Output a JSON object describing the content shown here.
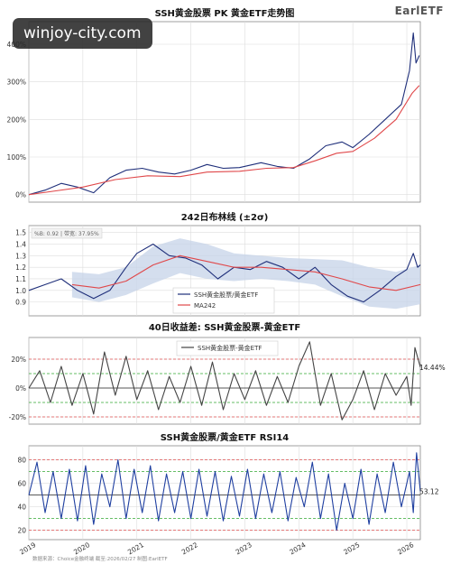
{
  "watermark": "winjoy-city.com",
  "logo": "EarlETF",
  "source": "数据来源：Choice金融终端 截至:2026/02/27 制图:EarlETF",
  "x_axis": {
    "years": [
      "2019",
      "2020",
      "2021",
      "2022",
      "2023",
      "2024",
      "2025",
      "2026"
    ],
    "start": 2019.0,
    "end": 2026.25
  },
  "colors": {
    "navy": "#1f2f7a",
    "red": "#e0484a",
    "band": "#c5d3e8",
    "gray": "#444444",
    "grid": "#dddddd",
    "green": "#33a833",
    "reddash": "#e05050",
    "black": "#222222"
  },
  "chart_data": [
    {
      "type": "line",
      "title": "SSH黄金股票 PK 黄金ETF走势图",
      "ylabel": "",
      "ylim": [
        -20,
        460
      ],
      "yticks": [
        "0%",
        "100%",
        "200%",
        "300%",
        "400%"
      ],
      "ytick_values": [
        0,
        100,
        200,
        300,
        400
      ],
      "series": [
        {
          "name": "",
          "color": "#1f2f7a",
          "points": [
            [
              2019.0,
              0
            ],
            [
              2019.3,
              12
            ],
            [
              2019.6,
              30
            ],
            [
              2019.9,
              20
            ],
            [
              2020.2,
              5
            ],
            [
              2020.5,
              45
            ],
            [
              2020.8,
              65
            ],
            [
              2021.1,
              70
            ],
            [
              2021.4,
              60
            ],
            [
              2021.7,
              55
            ],
            [
              2022.0,
              65
            ],
            [
              2022.3,
              80
            ],
            [
              2022.6,
              70
            ],
            [
              2022.9,
              72
            ],
            [
              2023.3,
              85
            ],
            [
              2023.6,
              75
            ],
            [
              2023.9,
              70
            ],
            [
              2024.2,
              95
            ],
            [
              2024.5,
              130
            ],
            [
              2024.8,
              140
            ],
            [
              2025.0,
              125
            ],
            [
              2025.3,
              160
            ],
            [
              2025.6,
              200
            ],
            [
              2025.9,
              240
            ],
            [
              2026.05,
              330
            ],
            [
              2026.12,
              430
            ],
            [
              2026.17,
              350
            ],
            [
              2026.23,
              370
            ]
          ]
        },
        {
          "name": "",
          "color": "#e0484a",
          "points": [
            [
              2019.0,
              0
            ],
            [
              2019.5,
              10
            ],
            [
              2020.0,
              20
            ],
            [
              2020.6,
              40
            ],
            [
              2021.2,
              50
            ],
            [
              2021.8,
              48
            ],
            [
              2022.3,
              60
            ],
            [
              2022.9,
              62
            ],
            [
              2023.4,
              70
            ],
            [
              2023.9,
              72
            ],
            [
              2024.3,
              90
            ],
            [
              2024.7,
              110
            ],
            [
              2025.0,
              115
            ],
            [
              2025.4,
              150
            ],
            [
              2025.8,
              200
            ],
            [
              2026.1,
              270
            ],
            [
              2026.23,
              290
            ]
          ]
        }
      ]
    },
    {
      "type": "line",
      "title": "242日布林线 (±2σ)",
      "annotation": "%B: 0.92 | 带宽: 37.95%",
      "ylim": [
        0.78,
        1.56
      ],
      "yticks": [
        "0.9",
        "1.0",
        "1.1",
        "1.2",
        "1.3",
        "1.4",
        "1.5"
      ],
      "ytick_values": [
        0.9,
        1.0,
        1.1,
        1.2,
        1.3,
        1.4,
        1.5
      ],
      "legend": [
        "SSH黄金股票/黄金ETF",
        "MA242"
      ],
      "series": [
        {
          "name": "SSH黄金股票/黄金ETF",
          "color": "#1f2f7a",
          "points": [
            [
              2019.0,
              1.0
            ],
            [
              2019.3,
              1.05
            ],
            [
              2019.6,
              1.1
            ],
            [
              2019.9,
              1.0
            ],
            [
              2020.2,
              0.93
            ],
            [
              2020.5,
              1.0
            ],
            [
              2020.8,
              1.2
            ],
            [
              2021.0,
              1.32
            ],
            [
              2021.3,
              1.4
            ],
            [
              2021.6,
              1.3
            ],
            [
              2021.9,
              1.28
            ],
            [
              2022.2,
              1.22
            ],
            [
              2022.5,
              1.1
            ],
            [
              2022.8,
              1.2
            ],
            [
              2023.1,
              1.18
            ],
            [
              2023.4,
              1.25
            ],
            [
              2023.7,
              1.2
            ],
            [
              2024.0,
              1.1
            ],
            [
              2024.3,
              1.2
            ],
            [
              2024.6,
              1.05
            ],
            [
              2024.9,
              0.95
            ],
            [
              2025.2,
              0.9
            ],
            [
              2025.5,
              1.0
            ],
            [
              2025.8,
              1.12
            ],
            [
              2026.0,
              1.18
            ],
            [
              2026.12,
              1.32
            ],
            [
              2026.2,
              1.2
            ],
            [
              2026.25,
              1.22
            ]
          ]
        },
        {
          "name": "MA242",
          "color": "#e0484a",
          "points": [
            [
              2019.8,
              1.05
            ],
            [
              2020.3,
              1.02
            ],
            [
              2020.8,
              1.08
            ],
            [
              2021.3,
              1.22
            ],
            [
              2021.8,
              1.3
            ],
            [
              2022.3,
              1.25
            ],
            [
              2022.8,
              1.2
            ],
            [
              2023.3,
              1.2
            ],
            [
              2023.8,
              1.18
            ],
            [
              2024.3,
              1.16
            ],
            [
              2024.8,
              1.1
            ],
            [
              2025.3,
              1.03
            ],
            [
              2025.8,
              1.0
            ],
            [
              2026.25,
              1.05
            ]
          ]
        }
      ],
      "band": {
        "upper": [
          [
            2019.8,
            1.16
          ],
          [
            2020.3,
            1.14
          ],
          [
            2020.8,
            1.2
          ],
          [
            2021.3,
            1.38
          ],
          [
            2021.8,
            1.45
          ],
          [
            2022.3,
            1.4
          ],
          [
            2022.8,
            1.32
          ],
          [
            2023.3,
            1.3
          ],
          [
            2023.8,
            1.28
          ],
          [
            2024.3,
            1.27
          ],
          [
            2024.8,
            1.26
          ],
          [
            2025.3,
            1.2
          ],
          [
            2025.8,
            1.16
          ],
          [
            2026.25,
            1.22
          ]
        ],
        "lower": [
          [
            2019.8,
            0.94
          ],
          [
            2020.3,
            0.9
          ],
          [
            2020.8,
            0.96
          ],
          [
            2021.3,
            1.06
          ],
          [
            2021.8,
            1.15
          ],
          [
            2022.3,
            1.1
          ],
          [
            2022.8,
            1.08
          ],
          [
            2023.3,
            1.1
          ],
          [
            2023.8,
            1.08
          ],
          [
            2024.3,
            1.05
          ],
          [
            2024.8,
            0.95
          ],
          [
            2025.3,
            0.86
          ],
          [
            2025.8,
            0.84
          ],
          [
            2026.25,
            0.88
          ]
        ]
      }
    },
    {
      "type": "line",
      "title": "40日收益差: SSH黄金股票-黄金ETF",
      "ylim": [
        -25,
        35
      ],
      "yticks": [
        "-20%",
        "0%",
        "20%"
      ],
      "ytick_values": [
        -20,
        0,
        20
      ],
      "reference_lines": [
        {
          "y": 20,
          "color": "#e05050"
        },
        {
          "y": 10,
          "color": "#33a833"
        },
        {
          "y": 0,
          "color": "#222222"
        },
        {
          "y": -10,
          "color": "#33a833"
        },
        {
          "y": -20,
          "color": "#e05050"
        }
      ],
      "legend": [
        "SSH黄金股票-黄金ETF"
      ],
      "series": [
        {
          "name": "SSH黄金股票-黄金ETF",
          "color": "#444444",
          "points": [
            [
              2019.0,
              0
            ],
            [
              2019.2,
              12
            ],
            [
              2019.4,
              -10
            ],
            [
              2019.6,
              15
            ],
            [
              2019.8,
              -12
            ],
            [
              2020.0,
              10
            ],
            [
              2020.2,
              -18
            ],
            [
              2020.4,
              25
            ],
            [
              2020.6,
              -5
            ],
            [
              2020.8,
              22
            ],
            [
              2021.0,
              -8
            ],
            [
              2021.2,
              12
            ],
            [
              2021.4,
              -15
            ],
            [
              2021.6,
              8
            ],
            [
              2021.8,
              -10
            ],
            [
              2022.0,
              15
            ],
            [
              2022.2,
              -12
            ],
            [
              2022.4,
              18
            ],
            [
              2022.6,
              -15
            ],
            [
              2022.8,
              10
            ],
            [
              2023.0,
              -8
            ],
            [
              2023.2,
              12
            ],
            [
              2023.4,
              -12
            ],
            [
              2023.6,
              8
            ],
            [
              2023.8,
              -10
            ],
            [
              2024.0,
              15
            ],
            [
              2024.2,
              32
            ],
            [
              2024.4,
              -12
            ],
            [
              2024.6,
              10
            ],
            [
              2024.8,
              -22
            ],
            [
              2025.0,
              -8
            ],
            [
              2025.2,
              12
            ],
            [
              2025.4,
              -15
            ],
            [
              2025.6,
              10
            ],
            [
              2025.8,
              -5
            ],
            [
              2026.0,
              8
            ],
            [
              2026.08,
              -12
            ],
            [
              2026.15,
              28
            ],
            [
              2026.25,
              14.44
            ]
          ]
        }
      ],
      "end_label": "14.44%"
    },
    {
      "type": "line",
      "title": "SSH黄金股票/黄金ETF RSI14",
      "ylim": [
        12,
        92
      ],
      "yticks": [
        "20",
        "40",
        "60",
        "80"
      ],
      "ytick_values": [
        20,
        40,
        60,
        80
      ],
      "reference_lines": [
        {
          "y": 80,
          "color": "#e05050"
        },
        {
          "y": 70,
          "color": "#33a833"
        },
        {
          "y": 50,
          "color": "#222222"
        },
        {
          "y": 30,
          "color": "#33a833"
        },
        {
          "y": 20,
          "color": "#e05050"
        }
      ],
      "series": [
        {
          "name": "",
          "color": "#1f3fa0",
          "points": [
            [
              2019.0,
              50
            ],
            [
              2019.15,
              78
            ],
            [
              2019.3,
              35
            ],
            [
              2019.45,
              70
            ],
            [
              2019.6,
              30
            ],
            [
              2019.75,
              72
            ],
            [
              2019.9,
              28
            ],
            [
              2020.05,
              75
            ],
            [
              2020.2,
              25
            ],
            [
              2020.35,
              68
            ],
            [
              2020.5,
              40
            ],
            [
              2020.65,
              80
            ],
            [
              2020.8,
              30
            ],
            [
              2020.95,
              72
            ],
            [
              2021.1,
              35
            ],
            [
              2021.25,
              75
            ],
            [
              2021.4,
              28
            ],
            [
              2021.55,
              68
            ],
            [
              2021.7,
              35
            ],
            [
              2021.85,
              70
            ],
            [
              2022.0,
              30
            ],
            [
              2022.15,
              72
            ],
            [
              2022.3,
              32
            ],
            [
              2022.45,
              70
            ],
            [
              2022.6,
              28
            ],
            [
              2022.75,
              66
            ],
            [
              2022.9,
              32
            ],
            [
              2023.05,
              72
            ],
            [
              2023.2,
              30
            ],
            [
              2023.35,
              68
            ],
            [
              2023.5,
              35
            ],
            [
              2023.65,
              70
            ],
            [
              2023.8,
              28
            ],
            [
              2023.95,
              65
            ],
            [
              2024.1,
              40
            ],
            [
              2024.25,
              78
            ],
            [
              2024.4,
              30
            ],
            [
              2024.55,
              68
            ],
            [
              2024.7,
              20
            ],
            [
              2024.85,
              60
            ],
            [
              2025.0,
              30
            ],
            [
              2025.15,
              72
            ],
            [
              2025.3,
              25
            ],
            [
              2025.45,
              68
            ],
            [
              2025.6,
              35
            ],
            [
              2025.75,
              78
            ],
            [
              2025.9,
              40
            ],
            [
              2026.05,
              70
            ],
            [
              2026.12,
              35
            ],
            [
              2026.18,
              86
            ],
            [
              2026.25,
              53.12
            ]
          ]
        }
      ],
      "end_label": "53.12"
    }
  ]
}
